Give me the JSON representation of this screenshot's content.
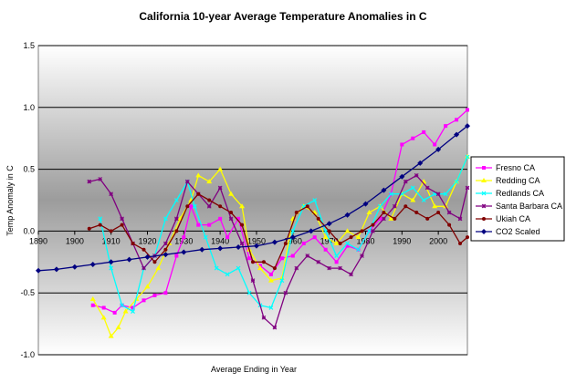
{
  "chart_data": {
    "type": "line",
    "title": "California 10-year Average Temperature Anomalies in C",
    "xlabel": "Average Ending in Year",
    "ylabel": "Temp Anomaly in C",
    "xlim": [
      1890,
      2008
    ],
    "ylim": [
      -1.0,
      1.5
    ],
    "x_ticks": [
      "1890",
      "1900",
      "1910",
      "1920",
      "1930",
      "1940",
      "1950",
      "1960",
      "1970",
      "1980",
      "1990",
      "2000"
    ],
    "y_ticks": [
      "1.5",
      "1.0",
      "0.5",
      "0.0",
      "-0.5",
      "-1.0"
    ],
    "grid": "horizontal",
    "legend_position": "right",
    "colors": {
      "plot_gradient_top": "#ffffff",
      "plot_gradient_bottom": "#808080",
      "gridline": "#000000"
    },
    "series": [
      {
        "name": "Fresno CA",
        "color": "#ff00ff",
        "marker": "square",
        "x": [
          1905,
          1908,
          1911,
          1913,
          1916,
          1919,
          1922,
          1925,
          1928,
          1930,
          1932,
          1934,
          1937,
          1940,
          1942,
          1945,
          1948,
          1951,
          1954,
          1957,
          1960,
          1963,
          1966,
          1969,
          1972,
          1975,
          1978,
          1981,
          1984,
          1987,
          1990,
          1993,
          1996,
          1999,
          2002,
          2005,
          2008
        ],
        "y": [
          -0.6,
          -0.62,
          -0.66,
          -0.6,
          -0.62,
          -0.56,
          -0.52,
          -0.5,
          -0.2,
          -0.05,
          0.2,
          0.05,
          0.05,
          0.1,
          -0.05,
          0.1,
          -0.22,
          -0.28,
          -0.35,
          -0.22,
          -0.2,
          -0.1,
          -0.05,
          -0.15,
          -0.25,
          -0.12,
          -0.15,
          0.0,
          0.1,
          0.3,
          0.7,
          0.75,
          0.8,
          0.7,
          0.85,
          0.9,
          0.98
        ]
      },
      {
        "name": "Redding CA",
        "color": "#ffff00",
        "marker": "triangle",
        "x": [
          1905,
          1908,
          1910,
          1912,
          1914,
          1917,
          1920,
          1923,
          1926,
          1929,
          1932,
          1934,
          1937,
          1940,
          1943,
          1946,
          1948,
          1951,
          1954,
          1957,
          1960,
          1963,
          1966,
          1969,
          1972,
          1975,
          1978,
          1981,
          1984,
          1987,
          1990,
          1993,
          1996,
          1999,
          2002,
          2005,
          2008
        ],
        "y": [
          -0.55,
          -0.7,
          -0.85,
          -0.78,
          -0.65,
          -0.55,
          -0.45,
          -0.3,
          -0.1,
          0.1,
          0.25,
          0.45,
          0.4,
          0.5,
          0.3,
          0.2,
          -0.15,
          -0.3,
          -0.4,
          -0.38,
          0.1,
          0.2,
          0.15,
          -0.05,
          -0.1,
          0.0,
          -0.05,
          0.15,
          0.2,
          0.1,
          0.3,
          0.25,
          0.4,
          0.2,
          0.2,
          0.4,
          0.6
        ]
      },
      {
        "name": "Redlands CA",
        "color": "#00ffff",
        "marker": "cross",
        "x": [
          1907,
          1910,
          1913,
          1916,
          1919,
          1922,
          1925,
          1928,
          1931,
          1933,
          1936,
          1939,
          1942,
          1945,
          1948,
          1951,
          1954,
          1957,
          1960,
          1963,
          1966,
          1969,
          1972,
          1975,
          1978,
          1981,
          1984,
          1987,
          1990,
          1993,
          1996,
          1999,
          2002,
          2005,
          2008
        ],
        "y": [
          0.1,
          -0.3,
          -0.6,
          -0.65,
          -0.3,
          -0.2,
          0.1,
          0.25,
          0.4,
          0.2,
          -0.05,
          -0.3,
          -0.35,
          -0.3,
          -0.5,
          -0.6,
          -0.62,
          -0.4,
          0.0,
          0.2,
          0.25,
          0.0,
          -0.2,
          -0.1,
          -0.15,
          0.0,
          0.2,
          0.3,
          0.3,
          0.35,
          0.25,
          0.3,
          0.3,
          0.4,
          0.6
        ]
      },
      {
        "name": "Santa Barbara CA",
        "color": "#800080",
        "marker": "star",
        "x": [
          1904,
          1907,
          1910,
          1913,
          1916,
          1919,
          1922,
          1925,
          1928,
          1931,
          1934,
          1937,
          1940,
          1943,
          1946,
          1949,
          1952,
          1955,
          1958,
          1961,
          1964,
          1967,
          1970,
          1973,
          1976,
          1979,
          1982,
          1985,
          1988,
          1991,
          1994,
          1997,
          2000,
          2003,
          2006,
          2008
        ],
        "y": [
          0.4,
          0.42,
          0.3,
          0.1,
          -0.1,
          -0.3,
          -0.2,
          -0.1,
          0.1,
          0.4,
          0.3,
          0.2,
          0.35,
          0.1,
          -0.1,
          -0.4,
          -0.7,
          -0.78,
          -0.5,
          -0.3,
          -0.2,
          -0.25,
          -0.3,
          -0.3,
          -0.35,
          -0.2,
          0.0,
          0.1,
          0.2,
          0.4,
          0.45,
          0.35,
          0.3,
          0.15,
          0.1,
          0.35
        ]
      },
      {
        "name": "Ukiah CA",
        "color": "#800000",
        "marker": "circle",
        "x": [
          1904,
          1907,
          1910,
          1913,
          1916,
          1919,
          1922,
          1925,
          1928,
          1931,
          1934,
          1937,
          1940,
          1943,
          1946,
          1949,
          1952,
          1955,
          1958,
          1961,
          1964,
          1967,
          1970,
          1973,
          1976,
          1979,
          1982,
          1985,
          1988,
          1991,
          1994,
          1997,
          2000,
          2003,
          2006,
          2008
        ],
        "y": [
          0.02,
          0.05,
          0.0,
          0.05,
          -0.1,
          -0.15,
          -0.25,
          -0.15,
          0.0,
          0.2,
          0.3,
          0.25,
          0.2,
          0.15,
          0.05,
          -0.25,
          -0.25,
          -0.3,
          -0.1,
          0.15,
          0.2,
          0.1,
          0.0,
          -0.1,
          -0.05,
          0.0,
          0.05,
          0.15,
          0.1,
          0.2,
          0.15,
          0.1,
          0.15,
          0.05,
          -0.1,
          -0.05
        ]
      },
      {
        "name": "CO2 Scaled",
        "color": "#000080",
        "marker": "diamond",
        "x": [
          1890,
          1895,
          1900,
          1905,
          1910,
          1915,
          1920,
          1925,
          1930,
          1935,
          1940,
          1945,
          1950,
          1955,
          1960,
          1965,
          1970,
          1975,
          1980,
          1985,
          1990,
          1995,
          2000,
          2005,
          2008
        ],
        "y": [
          -0.32,
          -0.31,
          -0.29,
          -0.27,
          -0.25,
          -0.23,
          -0.21,
          -0.19,
          -0.17,
          -0.15,
          -0.14,
          -0.13,
          -0.12,
          -0.09,
          -0.05,
          0.0,
          0.06,
          0.13,
          0.22,
          0.33,
          0.44,
          0.55,
          0.66,
          0.78,
          0.85
        ]
      }
    ]
  }
}
